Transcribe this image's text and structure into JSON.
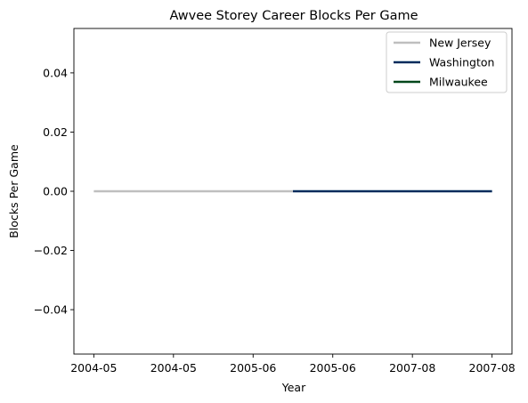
{
  "chart_data": {
    "type": "line",
    "title": "Awvee Storey Career Blocks Per Game",
    "xlabel": "Year",
    "ylabel": "Blocks Per Game",
    "ylim": [
      -0.055,
      0.055
    ],
    "y_ticks": [
      "0.04",
      "0.02",
      "0.00",
      "−0.02",
      "−0.04"
    ],
    "y_tick_values": [
      0.04,
      0.02,
      0.0,
      -0.02,
      -0.04
    ],
    "x_tick_labels": [
      "2004-05",
      "2004-05",
      "2005-06",
      "2005-06",
      "2007-08",
      "2007-08"
    ],
    "x_tick_values": [
      0,
      1,
      2,
      3,
      4,
      5
    ],
    "xlim": [
      -0.25,
      5.25
    ],
    "grid": false,
    "legend_position": "upper right",
    "series": [
      {
        "name": "New Jersey",
        "color": "#bfbfbf",
        "x": [
          0,
          2.5
        ],
        "values": [
          0.0,
          0.0
        ]
      },
      {
        "name": "Washington",
        "color": "#002b5c",
        "x": [
          2.5,
          5
        ],
        "values": [
          0.0,
          0.0
        ]
      },
      {
        "name": "Milwaukee",
        "color": "#00471b",
        "x": [],
        "values": []
      }
    ]
  }
}
